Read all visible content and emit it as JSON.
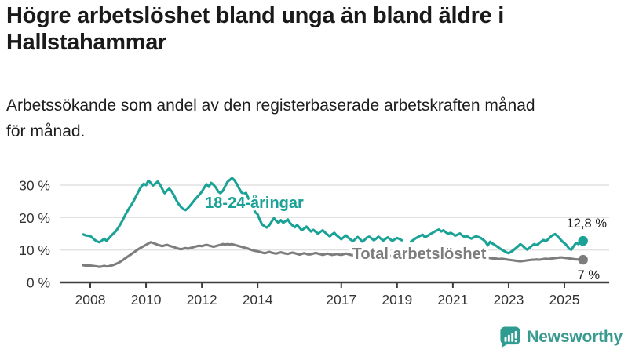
{
  "header": {
    "title": "Högre arbetslöshet bland unga än bland äldre i\nHallstahammar",
    "subtitle": "Arbetssökande som andel av den registerbaserade arbetskraften månad\nför månad."
  },
  "chart_data": {
    "type": "line",
    "x_unit": "month",
    "x_start": "2007-10",
    "x_end": "2025-09",
    "ylim": [
      0,
      33
    ],
    "grid": "horizontal",
    "grid_color": "#e1e1e1",
    "axis_color": "#3d3d3d",
    "yticks": [
      {
        "value": 0,
        "label": "0 %"
      },
      {
        "value": 10,
        "label": "10 %"
      },
      {
        "value": 20,
        "label": "20 %"
      },
      {
        "value": 30,
        "label": "30 %"
      }
    ],
    "xticks": [
      {
        "value": 2008,
        "label": "2008"
      },
      {
        "value": 2010,
        "label": "2010"
      },
      {
        "value": 2012,
        "label": "2012"
      },
      {
        "value": 2014,
        "label": "2014"
      },
      {
        "value": 2017,
        "label": "2017"
      },
      {
        "value": 2019,
        "label": "2019"
      },
      {
        "value": 2021,
        "label": "2021"
      },
      {
        "value": 2023,
        "label": "2023"
      },
      {
        "value": 2025,
        "label": "2025"
      }
    ],
    "series": [
      {
        "name": "18-24-åringar",
        "color": "#1aa296",
        "end_label": "12,8 %",
        "end_value": 12.8,
        "values": [
          14.8,
          14.5,
          14.4,
          14.3,
          13.7,
          13.1,
          12.6,
          12.4,
          12.9,
          13.5,
          12.8,
          13.6,
          14.4,
          15.1,
          15.8,
          16.8,
          18.0,
          19.3,
          20.7,
          22.0,
          23.2,
          24.3,
          25.6,
          27.0,
          28.4,
          29.6,
          30.4,
          30.0,
          31.4,
          30.7,
          29.9,
          30.5,
          31.1,
          30.2,
          28.8,
          27.5,
          28.3,
          28.9,
          28.1,
          26.8,
          25.4,
          24.2,
          23.3,
          22.6,
          22.3,
          22.9,
          23.7,
          24.6,
          25.5,
          26.3,
          27.1,
          28.0,
          29.2,
          30.3,
          29.5,
          30.7,
          30.1,
          29.3,
          28.1,
          27.5,
          28.2,
          29.6,
          31.0,
          31.6,
          32.2,
          31.5,
          30.4,
          29.0,
          27.8,
          27.3,
          27.6,
          26.0,
          24.5,
          23.0,
          21.6,
          21.0,
          19.2,
          17.8,
          17.3,
          16.9,
          17.6,
          18.7,
          19.8,
          19.0,
          18.4,
          19.2,
          18.4,
          18.9,
          19.4,
          18.3,
          17.6,
          17.0,
          17.7,
          16.9,
          16.1,
          16.6,
          17.2,
          16.4,
          15.7,
          16.2,
          15.6,
          15.0,
          15.6,
          16.1,
          15.4,
          14.8,
          14.2,
          14.8,
          15.3,
          14.5,
          13.9,
          13.3,
          13.9,
          14.5,
          13.8,
          13.2,
          12.7,
          13.3,
          14.0,
          13.4,
          12.6,
          13.1,
          13.8,
          14.1,
          13.6,
          13.0,
          13.5,
          14.1,
          13.5,
          12.9,
          13.4,
          13.9,
          13.3,
          12.8,
          13.3,
          13.7,
          13.4,
          13.0,
          null,
          null,
          null,
          12.6,
          13.1,
          13.6,
          14.0,
          14.4,
          14.7,
          13.9,
          14.3,
          14.8,
          15.2,
          15.6,
          16.0,
          16.3,
          15.7,
          16.1,
          15.4,
          15.0,
          15.3,
          14.9,
          14.4,
          14.7,
          15.1,
          14.5,
          14.0,
          14.3,
          13.8,
          13.5,
          13.9,
          14.2,
          14.0,
          13.7,
          13.2,
          12.6,
          11.4,
          12.5,
          12.0,
          11.6,
          11.1,
          10.6,
          10.1,
          9.7,
          9.3,
          9.0,
          9.4,
          9.9,
          10.5,
          11.1,
          11.8,
          11.3,
          10.6,
          10.1,
          10.7,
          11.3,
          11.8,
          11.5,
          12.0,
          12.6,
          13.1,
          12.7,
          13.3,
          14.0,
          14.6,
          14.9,
          14.3,
          13.5,
          12.7,
          12.1,
          11.4,
          10.4,
          10.1,
          11.2,
          12.2,
          11.8,
          12.4,
          12.8
        ]
      },
      {
        "name": "Total arbetslöshet",
        "color": "#7d7d7d",
        "end_label": "7 %",
        "end_value": 7.0,
        "values": [
          5.3,
          5.2,
          5.2,
          5.2,
          5.1,
          5.0,
          4.9,
          4.8,
          4.9,
          5.1,
          4.9,
          5.0,
          5.2,
          5.4,
          5.7,
          6.0,
          6.4,
          6.9,
          7.4,
          7.9,
          8.4,
          8.9,
          9.4,
          9.9,
          10.4,
          10.8,
          11.2,
          11.6,
          12.0,
          12.4,
          12.2,
          11.9,
          11.6,
          11.4,
          11.2,
          11.4,
          11.6,
          11.3,
          11.1,
          10.9,
          10.6,
          10.4,
          10.2,
          10.4,
          10.6,
          10.4,
          10.6,
          10.8,
          11.0,
          11.2,
          11.3,
          11.2,
          11.4,
          11.6,
          11.4,
          11.2,
          11.0,
          11.2,
          11.4,
          11.6,
          11.8,
          11.7,
          11.8,
          11.7,
          11.8,
          11.6,
          11.4,
          11.2,
          11.0,
          10.8,
          10.6,
          10.4,
          10.1,
          9.9,
          9.7,
          9.6,
          9.4,
          9.2,
          9.0,
          9.2,
          9.4,
          9.2,
          9.0,
          8.9,
          9.1,
          9.3,
          9.1,
          8.9,
          8.8,
          9.0,
          9.2,
          9.0,
          8.8,
          8.6,
          8.8,
          9.0,
          8.8,
          8.6,
          8.7,
          8.9,
          9.1,
          8.9,
          8.7,
          8.5,
          8.7,
          8.9,
          8.7,
          8.5,
          8.6,
          8.8,
          8.6,
          8.5,
          8.7,
          8.9,
          8.7,
          8.5,
          8.4,
          8.6,
          8.8,
          8.6,
          8.4,
          8.5,
          8.7,
          8.5,
          8.3,
          8.4,
          8.6,
          8.4,
          8.2,
          8.3,
          8.5,
          8.3,
          8.1,
          8.2,
          8.4,
          8.3,
          8.2,
          8.4,
          8.5,
          8.3,
          8.2,
          8.4,
          8.5,
          8.6,
          8.7,
          8.8,
          8.9,
          9.1,
          9.4,
          9.7,
          10.0,
          10.2,
          10.0,
          9.8,
          9.6,
          9.4,
          9.2,
          9.0,
          8.8,
          8.6,
          8.4,
          8.3,
          8.1,
          8.0,
          7.9,
          7.8,
          7.7,
          7.6,
          7.6,
          7.7,
          7.8,
          7.9,
          7.8,
          7.7,
          7.6,
          7.5,
          7.4,
          7.4,
          7.3,
          7.2,
          7.3,
          7.2,
          7.1,
          7.0,
          6.9,
          6.8,
          6.7,
          6.6,
          6.5,
          6.6,
          6.7,
          6.8,
          6.9,
          7.0,
          7.0,
          7.1,
          7.0,
          7.1,
          7.2,
          7.3,
          7.2,
          7.3,
          7.4,
          7.5,
          7.6,
          7.7,
          7.7,
          7.6,
          7.5,
          7.4,
          7.3,
          7.2,
          7.1,
          7.1,
          7.0,
          7.0
        ]
      }
    ]
  },
  "footer": {
    "brand": "Newsworthy",
    "brand_color": "#399a8f"
  }
}
